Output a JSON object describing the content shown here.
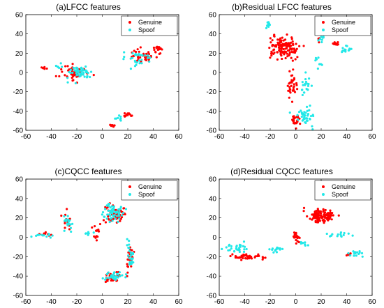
{
  "colors": {
    "genuine": "#ff0000",
    "spoof": "#22e8e8",
    "axis": "#000000",
    "background": "#ffffff"
  },
  "chart_data": [
    {
      "type": "scatter",
      "title": "(a)LFCC features",
      "xlim": [
        -60,
        60
      ],
      "ylim": [
        -60,
        60
      ],
      "xticks": [
        "-60",
        "-40",
        "-20",
        "0",
        "20",
        "40",
        "60"
      ],
      "yticks": [
        "60",
        "40",
        "20",
        "0",
        "-20",
        "-40",
        "-60"
      ],
      "legend_position": "top-right",
      "grid": false,
      "series": [
        {
          "name": "Genuine",
          "clusters": [
            {
              "cx": -22,
              "cy": 0,
              "sx": 9,
              "sy": 7,
              "n": 55
            },
            {
              "cx": 32,
              "cy": 18,
              "sx": 9,
              "sy": 6,
              "n": 40
            },
            {
              "cx": 44,
              "cy": 26,
              "sx": 3,
              "sy": 3,
              "n": 18
            },
            {
              "cx": 20,
              "cy": -44,
              "sx": 2,
              "sy": 1.5,
              "n": 14
            },
            {
              "cx": 8,
              "cy": -55,
              "sx": 2,
              "sy": 1,
              "n": 8
            },
            {
              "cx": -45,
              "cy": 4,
              "sx": 2,
              "sy": 1.5,
              "n": 5
            }
          ]
        },
        {
          "name": "Spoof",
          "clusters": [
            {
              "cx": -18,
              "cy": 0,
              "sx": 8,
              "sy": 6,
              "n": 50
            },
            {
              "cx": 28,
              "cy": 15,
              "sx": 11,
              "sy": 6,
              "n": 28
            },
            {
              "cx": 12,
              "cy": -48,
              "sx": 3,
              "sy": 3,
              "n": 8
            },
            {
              "cx": -32,
              "cy": 6,
              "sx": 3,
              "sy": 3,
              "n": 6
            }
          ]
        }
      ]
    },
    {
      "type": "scatter",
      "title": "(b)Residual LFCC features",
      "xlim": [
        -60,
        60
      ],
      "ylim": [
        -60,
        60
      ],
      "xticks": [
        "-60",
        "-40",
        "-20",
        "0",
        "20",
        "40",
        "60"
      ],
      "yticks": [
        "60",
        "40",
        "20",
        "0",
        "-20",
        "-40",
        "-60"
      ],
      "legend_position": "top-right",
      "grid": false,
      "series": [
        {
          "name": "Genuine",
          "clusters": [
            {
              "cx": -10,
              "cy": 25,
              "sx": 10,
              "sy": 10,
              "n": 120
            },
            {
              "cx": -3,
              "cy": -15,
              "sx": 3,
              "sy": 12,
              "n": 35
            },
            {
              "cx": -1,
              "cy": -48,
              "sx": 3,
              "sy": 5,
              "n": 25
            },
            {
              "cx": 32,
              "cy": 30,
              "sx": 2,
              "sy": 1.5,
              "n": 14
            },
            {
              "cx": 18,
              "cy": 35,
              "sx": 1,
              "sy": 2,
              "n": 5
            }
          ]
        },
        {
          "name": "Spoof",
          "clusters": [
            {
              "cx": 8,
              "cy": -45,
              "sx": 6,
              "sy": 8,
              "n": 40
            },
            {
              "cx": 8,
              "cy": -15,
              "sx": 3,
              "sy": 10,
              "n": 20
            },
            {
              "cx": 40,
              "cy": 24,
              "sx": 4,
              "sy": 3,
              "n": 16
            },
            {
              "cx": 20,
              "cy": 35,
              "sx": 2,
              "sy": 4,
              "n": 10
            },
            {
              "cx": -22,
              "cy": 50,
              "sx": 2,
              "sy": 3,
              "n": 10
            },
            {
              "cx": 18,
              "cy": 10,
              "sx": 3,
              "sy": 6,
              "n": 8
            }
          ]
        }
      ]
    },
    {
      "type": "scatter",
      "title": "(c)CQCC features",
      "xlim": [
        -60,
        60
      ],
      "ylim": [
        -60,
        60
      ],
      "xticks": [
        "-60",
        "-40",
        "-20",
        "0",
        "20",
        "40",
        "60"
      ],
      "yticks": [
        "60",
        "40",
        "20",
        "0",
        "-20",
        "-40",
        "-60"
      ],
      "legend_position": "top-right",
      "grid": false,
      "series": [
        {
          "name": "Genuine",
          "clusters": [
            {
              "cx": 10,
              "cy": 25,
              "sx": 6,
              "sy": 8,
              "n": 60
            },
            {
              "cx": 8,
              "cy": -40,
              "sx": 6,
              "sy": 5,
              "n": 30
            },
            {
              "cx": 22,
              "cy": -20,
              "sx": 3,
              "sy": 12,
              "n": 25
            },
            {
              "cx": -5,
              "cy": 5,
              "sx": 3,
              "sy": 8,
              "n": 15
            },
            {
              "cx": -28,
              "cy": 15,
              "sx": 4,
              "sy": 8,
              "n": 15
            },
            {
              "cx": -45,
              "cy": 3,
              "sx": 6,
              "sy": 2,
              "n": 10
            }
          ]
        },
        {
          "name": "Spoof",
          "clusters": [
            {
              "cx": 8,
              "cy": 25,
              "sx": 6,
              "sy": 8,
              "n": 55
            },
            {
              "cx": 10,
              "cy": -40,
              "sx": 6,
              "sy": 5,
              "n": 30
            },
            {
              "cx": 22,
              "cy": -20,
              "sx": 3,
              "sy": 12,
              "n": 25
            },
            {
              "cx": -27,
              "cy": 14,
              "sx": 4,
              "sy": 8,
              "n": 18
            },
            {
              "cx": -46,
              "cy": 2,
              "sx": 6,
              "sy": 2,
              "n": 12
            },
            {
              "cx": -12,
              "cy": 4,
              "sx": 4,
              "sy": 2,
              "n": 8
            }
          ]
        }
      ]
    },
    {
      "type": "scatter",
      "title": "(d)Residual CQCC features",
      "xlim": [
        -60,
        60
      ],
      "ylim": [
        -60,
        60
      ],
      "xticks": [
        "-60",
        "-40",
        "-20",
        "0",
        "20",
        "40",
        "60"
      ],
      "yticks": [
        "60",
        "40",
        "20",
        "0",
        "-20",
        "-40",
        "-60"
      ],
      "legend_position": "top-right",
      "grid": false,
      "series": [
        {
          "name": "Genuine",
          "clusters": [
            {
              "cx": 20,
              "cy": 22,
              "sx": 8,
              "sy": 6,
              "n": 120
            },
            {
              "cx": -38,
              "cy": -20,
              "sx": 12,
              "sy": 2,
              "n": 50
            },
            {
              "cx": 1,
              "cy": 0,
              "sx": 2,
              "sy": 4,
              "n": 20
            },
            {
              "cx": 42,
              "cy": -18,
              "sx": 2,
              "sy": 1.2,
              "n": 8
            }
          ]
        },
        {
          "name": "Spoof",
          "clusters": [
            {
              "cx": -45,
              "cy": -12,
              "sx": 8,
              "sy": 4,
              "n": 30
            },
            {
              "cx": -15,
              "cy": -13,
              "sx": 8,
              "sy": 2,
              "n": 15
            },
            {
              "cx": 35,
              "cy": 2,
              "sx": 8,
              "sy": 3,
              "n": 15
            },
            {
              "cx": 48,
              "cy": -17,
              "sx": 5,
              "sy": 3,
              "n": 15
            },
            {
              "cx": 6,
              "cy": -6,
              "sx": 3,
              "sy": 2,
              "n": 8
            }
          ]
        }
      ]
    }
  ]
}
